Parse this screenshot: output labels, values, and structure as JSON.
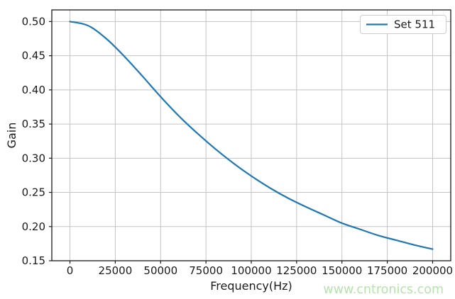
{
  "chart_data": {
    "type": "line",
    "title": "",
    "xlabel": "Frequency(Hz)",
    "ylabel": "Gain",
    "xlim": [
      -10000,
      210000
    ],
    "ylim": [
      0.15,
      0.517
    ],
    "xticks": [
      0,
      25000,
      50000,
      75000,
      100000,
      125000,
      150000,
      175000,
      200000
    ],
    "xticklabels": [
      "0",
      "25000",
      "50000",
      "75000",
      "100000",
      "125000",
      "150000",
      "175000",
      "200000"
    ],
    "yticks": [
      0.15,
      0.2,
      0.25,
      0.3,
      0.35,
      0.4,
      0.45,
      0.5
    ],
    "yticklabels": [
      "0.15",
      "0.20",
      "0.25",
      "0.30",
      "0.35",
      "0.40",
      "0.45",
      "0.50"
    ],
    "grid": true,
    "legend": {
      "position": "upper right"
    },
    "series": [
      {
        "name": "Set 511",
        "color": "#1f77b4",
        "x": [
          0,
          10000,
          20000,
          30000,
          40000,
          50000,
          60000,
          70000,
          80000,
          90000,
          100000,
          110000,
          120000,
          130000,
          140000,
          150000,
          160000,
          170000,
          180000,
          190000,
          200000
        ],
        "y": [
          0.5,
          0.494,
          0.475,
          0.449,
          0.42,
          0.39,
          0.362,
          0.337,
          0.314,
          0.293,
          0.274,
          0.257,
          0.242,
          0.229,
          0.217,
          0.205,
          0.196,
          0.187,
          0.18,
          0.173,
          0.167
        ]
      }
    ],
    "watermark": {
      "text": "www.cntronics.com",
      "color": "#b7e2ae"
    }
  },
  "style": {
    "grid_color": "#c3c3c3",
    "spine_color": "#1a1a1a",
    "text_color": "#1a1a1a",
    "legend_border": "#cccccc",
    "legend_bg": "#ffffff"
  }
}
